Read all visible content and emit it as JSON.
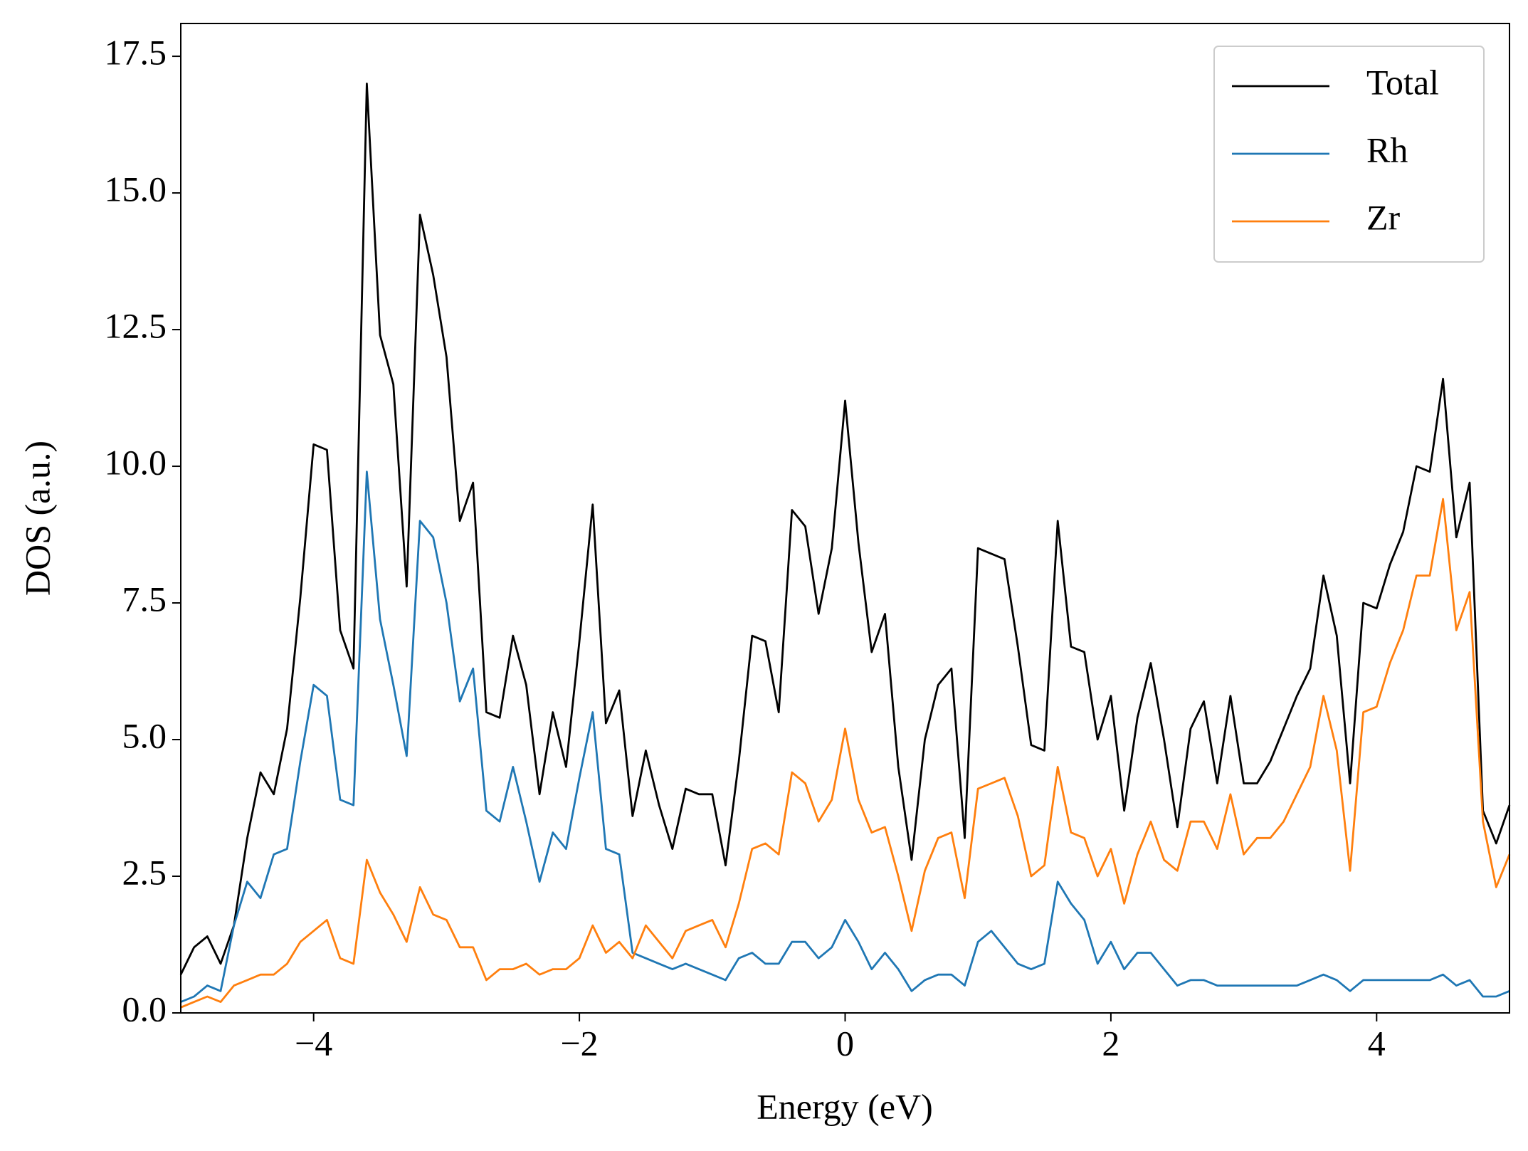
{
  "chart_data": {
    "type": "line",
    "xlabel": "Energy (eV)",
    "ylabel": "DOS (a.u.)",
    "xlim": [
      -5,
      5
    ],
    "ylim": [
      0,
      18.1
    ],
    "xticks": [
      {
        "value": -4,
        "label": "−4"
      },
      {
        "value": -2,
        "label": "−2"
      },
      0,
      2,
      4
    ],
    "yticks": [
      {
        "value": 0,
        "label": "0.0"
      },
      {
        "value": 2.5,
        "label": "2.5"
      },
      {
        "value": 5,
        "label": "5.0"
      },
      {
        "value": 7.5,
        "label": "7.5"
      },
      {
        "value": 10,
        "label": "10.0"
      },
      {
        "value": 12.5,
        "label": "12.5"
      },
      {
        "value": 15,
        "label": "15.0"
      },
      {
        "value": 17.5,
        "label": "17.5"
      }
    ],
    "legend": "upper right",
    "x": [
      -5.0,
      -4.9,
      -4.8,
      -4.7,
      -4.6,
      -4.5,
      -4.4,
      -4.3,
      -4.2,
      -4.1,
      -4.0,
      -3.9,
      -3.8,
      -3.7,
      -3.6,
      -3.5,
      -3.4,
      -3.3,
      -3.2,
      -3.1,
      -3.0,
      -2.9,
      -2.8,
      -2.7,
      -2.6,
      -2.5,
      -2.4,
      -2.3,
      -2.2,
      -2.1,
      -2.0,
      -1.9,
      -1.8,
      -1.7,
      -1.6,
      -1.5,
      -1.4,
      -1.3,
      -1.2,
      -1.1,
      -1.0,
      -0.9,
      -0.8,
      -0.7,
      -0.6,
      -0.5,
      -0.4,
      -0.3,
      -0.2,
      -0.1,
      0.0,
      0.1,
      0.2,
      0.3,
      0.4,
      0.5,
      0.6,
      0.7,
      0.8,
      0.9,
      1.0,
      1.1,
      1.2,
      1.3,
      1.4,
      1.5,
      1.6,
      1.7,
      1.8,
      1.9,
      2.0,
      2.1,
      2.2,
      2.3,
      2.4,
      2.5,
      2.6,
      2.7,
      2.8,
      2.9,
      3.0,
      3.1,
      3.2,
      3.3,
      3.4,
      3.5,
      3.6,
      3.7,
      3.8,
      3.9,
      4.0,
      4.1,
      4.2,
      4.3,
      4.4,
      4.5,
      4.6,
      4.7,
      4.8,
      4.9,
      5.0
    ],
    "series": [
      {
        "name": "Total",
        "color": "#000000",
        "values": [
          0.7,
          1.2,
          1.4,
          0.9,
          1.6,
          3.2,
          4.4,
          4.0,
          5.2,
          7.6,
          10.4,
          10.3,
          7.0,
          6.3,
          17.0,
          12.4,
          11.5,
          7.8,
          14.6,
          13.5,
          12.0,
          9.0,
          9.7,
          5.5,
          5.4,
          6.9,
          6.0,
          4.0,
          5.5,
          4.5,
          6.8,
          9.3,
          5.3,
          5.9,
          3.6,
          4.8,
          3.8,
          3.0,
          4.1,
          4.0,
          4.0,
          2.7,
          4.6,
          6.9,
          6.8,
          5.5,
          9.2,
          8.9,
          7.3,
          8.5,
          11.2,
          8.6,
          6.6,
          7.3,
          4.5,
          2.8,
          5.0,
          6.0,
          6.3,
          3.2,
          8.5,
          8.4,
          8.3,
          6.7,
          4.9,
          4.8,
          9.0,
          6.7,
          6.6,
          5.0,
          5.8,
          3.7,
          5.4,
          6.4,
          5.0,
          3.4,
          5.2,
          5.7,
          4.2,
          5.8,
          4.2,
          4.2,
          4.6,
          5.2,
          5.8,
          6.3,
          8.0,
          6.9,
          4.2,
          7.5,
          7.4,
          8.2,
          8.8,
          10.0,
          9.9,
          11.6,
          8.7,
          9.7,
          3.7,
          3.1,
          3.8
        ]
      },
      {
        "name": "Rh",
        "color": "#1f77b4",
        "values": [
          0.2,
          0.3,
          0.5,
          0.4,
          1.6,
          2.4,
          2.1,
          2.9,
          3.0,
          4.6,
          6.0,
          5.8,
          3.9,
          3.8,
          9.9,
          7.2,
          6.0,
          4.7,
          9.0,
          8.7,
          7.5,
          5.7,
          6.3,
          3.7,
          3.5,
          4.5,
          3.5,
          2.4,
          3.3,
          3.0,
          4.3,
          5.5,
          3.0,
          2.9,
          1.1,
          1.0,
          0.9,
          0.8,
          0.9,
          0.8,
          0.7,
          0.6,
          1.0,
          1.1,
          0.9,
          0.9,
          1.3,
          1.3,
          1.0,
          1.2,
          1.7,
          1.3,
          0.8,
          1.1,
          0.8,
          0.4,
          0.6,
          0.7,
          0.7,
          0.5,
          1.3,
          1.5,
          1.2,
          0.9,
          0.8,
          0.9,
          2.4,
          2.0,
          1.7,
          0.9,
          1.3,
          0.8,
          1.1,
          1.1,
          0.8,
          0.5,
          0.6,
          0.6,
          0.5,
          0.5,
          0.5,
          0.5,
          0.5,
          0.5,
          0.5,
          0.6,
          0.7,
          0.6,
          0.4,
          0.6,
          0.6,
          0.6,
          0.6,
          0.6,
          0.6,
          0.7,
          0.5,
          0.6,
          0.3,
          0.3,
          0.4
        ]
      },
      {
        "name": "Zr",
        "color": "#ff7f0e",
        "values": [
          0.1,
          0.2,
          0.3,
          0.2,
          0.5,
          0.6,
          0.7,
          0.7,
          0.9,
          1.3,
          1.5,
          1.7,
          1.0,
          0.9,
          2.8,
          2.2,
          1.8,
          1.3,
          2.3,
          1.8,
          1.7,
          1.2,
          1.2,
          0.6,
          0.8,
          0.8,
          0.9,
          0.7,
          0.8,
          0.8,
          1.0,
          1.6,
          1.1,
          1.3,
          1.0,
          1.6,
          1.3,
          1.0,
          1.5,
          1.6,
          1.7,
          1.2,
          2.0,
          3.0,
          3.1,
          2.9,
          4.4,
          4.2,
          3.5,
          3.9,
          5.2,
          3.9,
          3.3,
          3.4,
          2.5,
          1.5,
          2.6,
          3.2,
          3.3,
          2.1,
          4.1,
          4.2,
          4.3,
          3.6,
          2.5,
          2.7,
          4.5,
          3.3,
          3.2,
          2.5,
          3.0,
          2.0,
          2.9,
          3.5,
          2.8,
          2.6,
          3.5,
          3.5,
          3.0,
          4.0,
          2.9,
          3.2,
          3.2,
          3.5,
          4.0,
          4.5,
          5.8,
          4.8,
          2.6,
          5.5,
          5.6,
          6.4,
          7.0,
          8.0,
          8.0,
          9.4,
          7.0,
          7.7,
          3.5,
          2.3,
          2.9
        ]
      }
    ]
  }
}
